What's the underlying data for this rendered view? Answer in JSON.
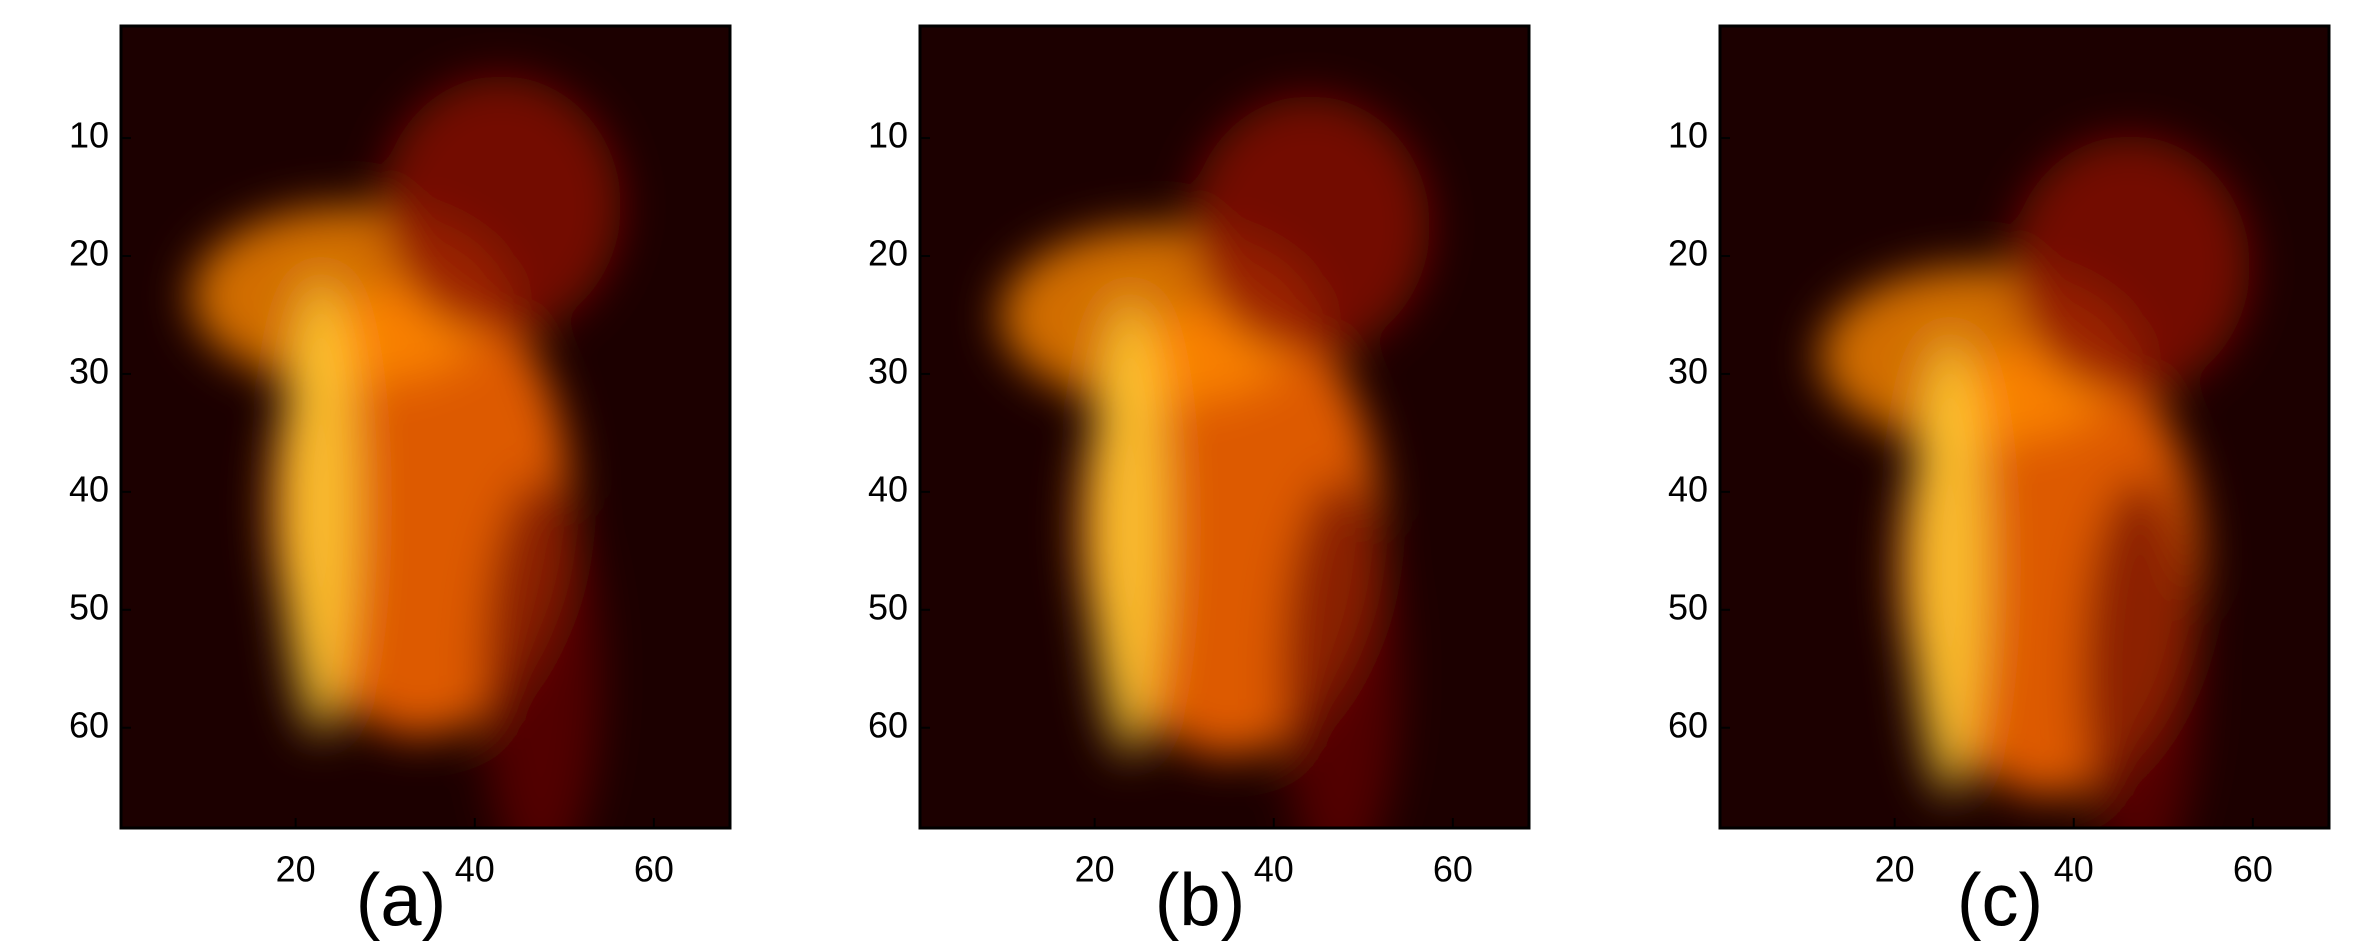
{
  "chart_data": [
    {
      "type": "image",
      "colormap": "hot",
      "xlabel": "(a)",
      "xlim": [
        0.5,
        68.5
      ],
      "ylim": [
        0.5,
        68.5
      ],
      "xticks": [
        20,
        40,
        60
      ],
      "yticks": [
        10,
        20,
        30,
        40,
        50,
        60
      ]
    },
    {
      "type": "image",
      "colormap": "hot",
      "xlabel": "(b)",
      "xlim": [
        0.5,
        68.5
      ],
      "ylim": [
        0.5,
        68.5
      ],
      "xticks": [
        20,
        40,
        60
      ],
      "yticks": [
        10,
        20,
        30,
        40,
        50,
        60
      ]
    },
    {
      "type": "image",
      "colormap": "hot",
      "xlabel": "(c)",
      "xlim": [
        0.5,
        68.5
      ],
      "ylim": [
        0.5,
        68.5
      ],
      "xticks": [
        20,
        40,
        60
      ],
      "yticks": [
        10,
        20,
        30,
        40,
        50,
        60
      ]
    }
  ]
}
